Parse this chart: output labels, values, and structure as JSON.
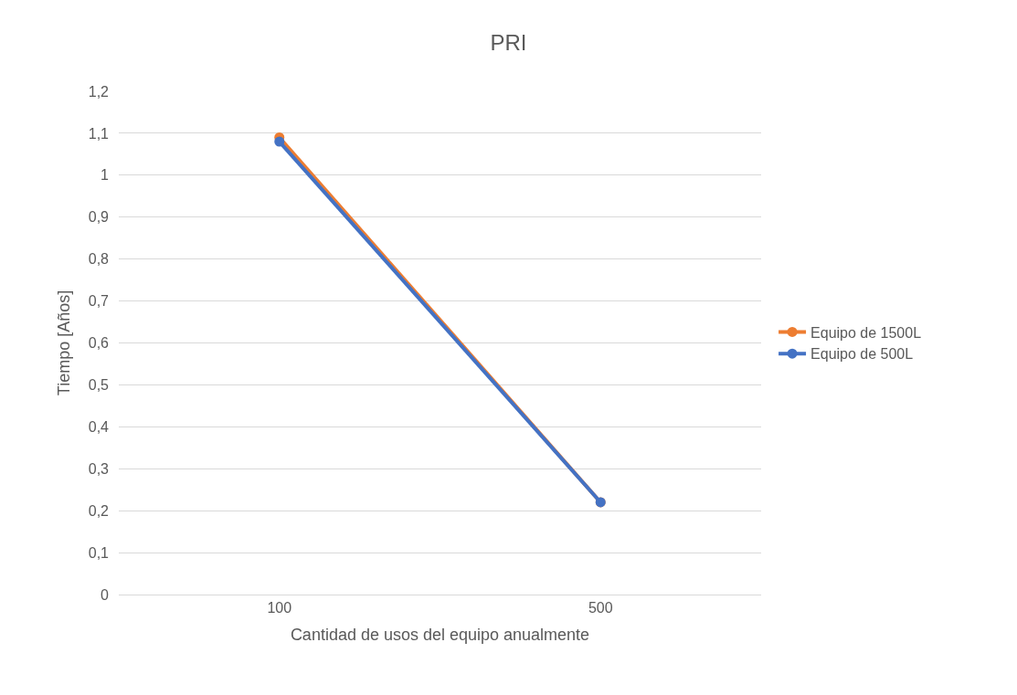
{
  "chart_data": {
    "type": "line",
    "title": "PRI",
    "xlabel": "Cantidad de usos del equipo anualmente",
    "ylabel": "Tiempo [Años]",
    "categories": [
      "100",
      "500"
    ],
    "series": [
      {
        "name": "Equipo de 1500L",
        "color": "#ed7d31",
        "values": [
          1.09,
          0.22
        ]
      },
      {
        "name": "Equipo de 500L",
        "color": "#4472c4",
        "values": [
          1.08,
          0.22
        ]
      }
    ],
    "ylim": [
      0,
      1.2
    ],
    "yticks": [
      {
        "value": 0,
        "label": "0"
      },
      {
        "value": 0.1,
        "label": "0,1"
      },
      {
        "value": 0.2,
        "label": "0,2"
      },
      {
        "value": 0.3,
        "label": "0,3"
      },
      {
        "value": 0.4,
        "label": "0,4"
      },
      {
        "value": 0.5,
        "label": "0,5"
      },
      {
        "value": 0.6,
        "label": "0,6"
      },
      {
        "value": 0.7,
        "label": "0,7"
      },
      {
        "value": 0.8,
        "label": "0,8"
      },
      {
        "value": 0.9,
        "label": "0,9"
      },
      {
        "value": 1,
        "label": "1"
      },
      {
        "value": 1.1,
        "label": "1,1"
      },
      {
        "value": 1.2,
        "label": "1,2"
      }
    ],
    "grid": "y",
    "legend": "right",
    "marker": "circle",
    "line_style": "solid"
  }
}
